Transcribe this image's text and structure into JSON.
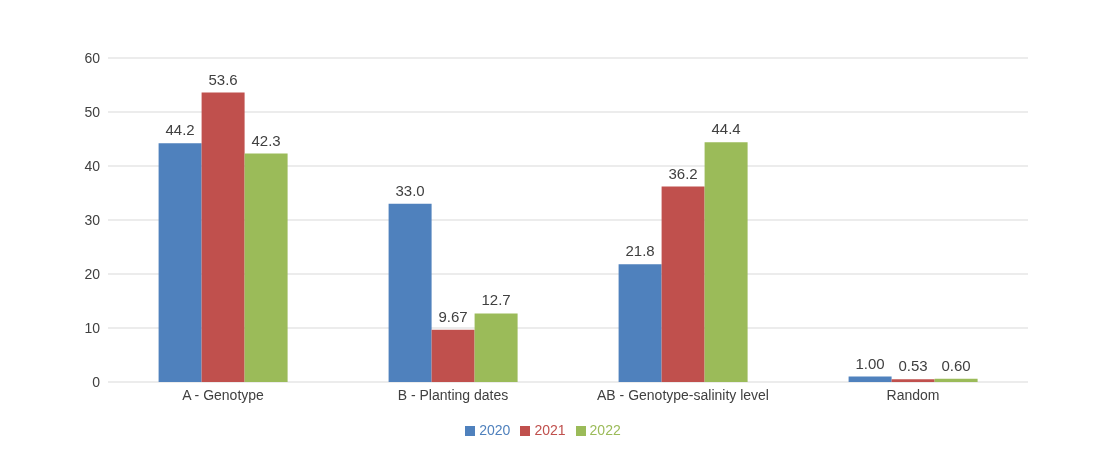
{
  "chart_data": {
    "type": "bar",
    "categories": [
      "A - Genotype",
      "B - Planting dates",
      "AB - Genotype-salinity level",
      "Random"
    ],
    "series": [
      {
        "name": "2020",
        "color": "#4f81bd",
        "values": [
          44.2,
          33.0,
          21.8,
          1.0
        ],
        "value_labels": [
          "44.2",
          "33.0",
          "21.8",
          "1.00"
        ]
      },
      {
        "name": "2021",
        "color": "#c0504d",
        "values": [
          53.6,
          9.67,
          36.2,
          0.53
        ],
        "value_labels": [
          "53.6",
          "9.67",
          "36.2",
          "0.53"
        ]
      },
      {
        "name": "2022",
        "color": "#9bbb59",
        "values": [
          42.3,
          12.7,
          44.4,
          0.6
        ],
        "value_labels": [
          "42.3",
          "12.7",
          "44.4",
          "0.60"
        ]
      }
    ],
    "ylim": [
      0,
      60
    ],
    "yticks": [
      0,
      10,
      20,
      30,
      40,
      50,
      60
    ],
    "grid": "y",
    "legend": "bottom"
  }
}
